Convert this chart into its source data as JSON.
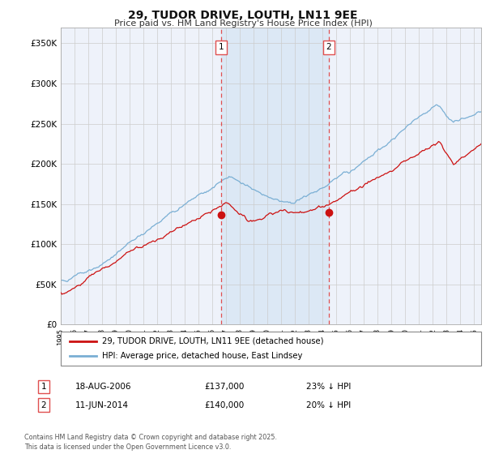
{
  "title": "29, TUDOR DRIVE, LOUTH, LN11 9EE",
  "subtitle": "Price paid vs. HM Land Registry's House Price Index (HPI)",
  "background_color": "#ffffff",
  "plot_bg_color": "#eef2fa",
  "span_color": "#dce8f5",
  "ylabel_ticks": [
    "£0",
    "£50K",
    "£100K",
    "£150K",
    "£200K",
    "£250K",
    "£300K",
    "£350K"
  ],
  "ytick_values": [
    0,
    50000,
    100000,
    150000,
    200000,
    250000,
    300000,
    350000
  ],
  "ylim": [
    0,
    370000
  ],
  "xlim_start": 1995.0,
  "xlim_end": 2025.5,
  "xticks": [
    1995,
    1996,
    1997,
    1998,
    1999,
    2000,
    2001,
    2002,
    2003,
    2004,
    2005,
    2006,
    2007,
    2008,
    2009,
    2010,
    2011,
    2012,
    2013,
    2014,
    2015,
    2016,
    2017,
    2018,
    2019,
    2020,
    2021,
    2022,
    2023,
    2024,
    2025
  ],
  "marker1_x": 2006.63,
  "marker1_y": 137000,
  "marker1_label": "1",
  "marker1_date": "18-AUG-2006",
  "marker1_price": "£137,000",
  "marker1_hpi": "23% ↓ HPI",
  "marker2_x": 2014.44,
  "marker2_y": 140000,
  "marker2_label": "2",
  "marker2_date": "11-JUN-2014",
  "marker2_price": "£140,000",
  "marker2_hpi": "20% ↓ HPI",
  "hpi_color": "#7aafd4",
  "price_color": "#cc1111",
  "marker_color": "#cc1111",
  "vline_color": "#e05050",
  "grid_color": "#cccccc",
  "legend_label_price": "29, TUDOR DRIVE, LOUTH, LN11 9EE (detached house)",
  "legend_label_hpi": "HPI: Average price, detached house, East Lindsey",
  "footer": "Contains HM Land Registry data © Crown copyright and database right 2025.\nThis data is licensed under the Open Government Licence v3.0."
}
